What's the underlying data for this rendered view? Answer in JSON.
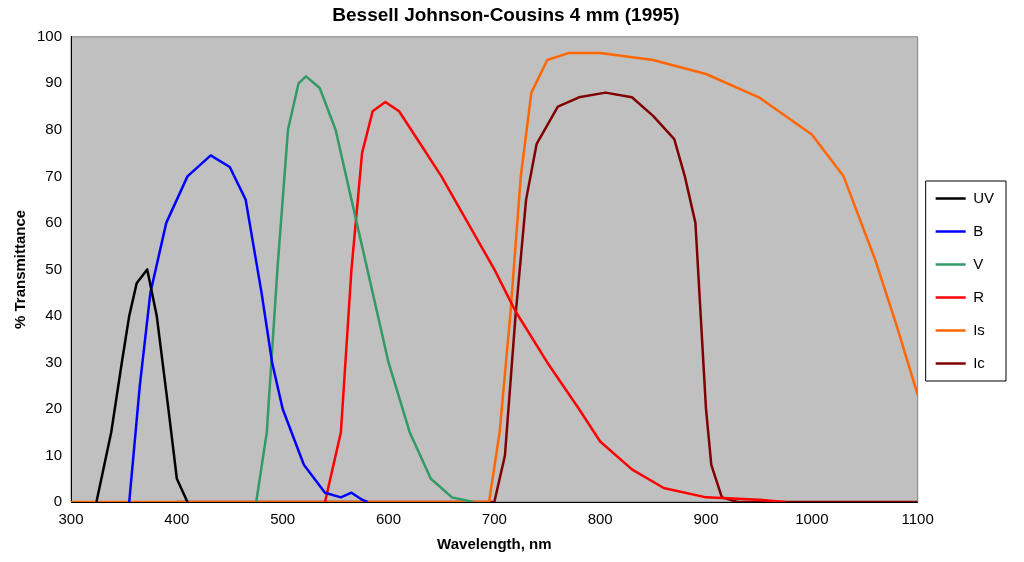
{
  "chart_data": {
    "type": "line",
    "title": "Bessell Johnson-Cousins 4 mm (1995)",
    "xlabel": "Wavelength, nm",
    "ylabel": "% Transmittance",
    "xlim": [
      300,
      1100
    ],
    "xticks": [
      300,
      400,
      500,
      600,
      700,
      800,
      900,
      1000,
      1100
    ],
    "ylim": [
      0,
      100
    ],
    "yticks": [
      0,
      10,
      20,
      30,
      40,
      50,
      60,
      70,
      80,
      90,
      100
    ],
    "grid": false,
    "legend": "right",
    "marker": "none",
    "line_style": "solid",
    "series": [
      {
        "name": "UV",
        "color": "#000000",
        "x": [
          324,
          338,
          348,
          355,
          362,
          372,
          381,
          392,
          400,
          410
        ],
        "values": [
          0,
          15,
          30,
          40,
          47,
          50,
          40,
          20,
          5,
          0
        ]
      },
      {
        "name": "B",
        "color": "#0000ff",
        "x": [
          355,
          365,
          375,
          390,
          410,
          432,
          450,
          465,
          480,
          490,
          500,
          520,
          540,
          555,
          565,
          575,
          580
        ],
        "values": [
          0,
          25,
          45,
          60,
          70,
          74.5,
          72,
          65,
          45,
          30,
          20,
          8,
          2,
          1,
          2,
          0.5,
          0
        ]
      },
      {
        "name": "V",
        "color": "#339966",
        "x": [
          475,
          485,
          495,
          505,
          515,
          522,
          535,
          550,
          565,
          580,
          600,
          620,
          640,
          660,
          680
        ],
        "values": [
          0,
          15,
          50,
          80,
          90,
          91.5,
          89,
          80,
          65,
          50,
          30,
          15,
          5,
          1,
          0
        ]
      },
      {
        "name": "R",
        "color": "#ff0000",
        "x": [
          540,
          555,
          565,
          575,
          585,
          597,
          610,
          630,
          650,
          670,
          700,
          720,
          750,
          780,
          800,
          830,
          860,
          900,
          950,
          975
        ],
        "values": [
          0,
          15,
          50,
          75,
          84,
          86,
          84,
          77,
          70,
          62,
          50,
          41,
          30,
          20,
          13,
          7,
          3,
          1,
          0.5,
          0
        ]
      },
      {
        "name": "Is",
        "color": "#ff6600",
        "x": [
          300,
          695,
          705,
          715,
          725,
          735,
          750,
          770,
          800,
          850,
          900,
          950,
          1000,
          1030,
          1060,
          1080,
          1100
        ],
        "values": [
          0,
          0,
          15,
          40,
          70,
          88,
          95,
          96.5,
          96.5,
          95,
          92,
          87,
          79,
          70,
          52,
          38,
          23
        ]
      },
      {
        "name": "Ic",
        "color": "#800000",
        "x": [
          400,
          700,
          710,
          720,
          730,
          740,
          760,
          780,
          805,
          830,
          850,
          870,
          880,
          890,
          895,
          900,
          905,
          915,
          930,
          1100
        ],
        "values": [
          0,
          0,
          10,
          40,
          65,
          77,
          85,
          87,
          88,
          87,
          83,
          78,
          70,
          60,
          40,
          20,
          8,
          1,
          0,
          0
        ]
      }
    ]
  }
}
